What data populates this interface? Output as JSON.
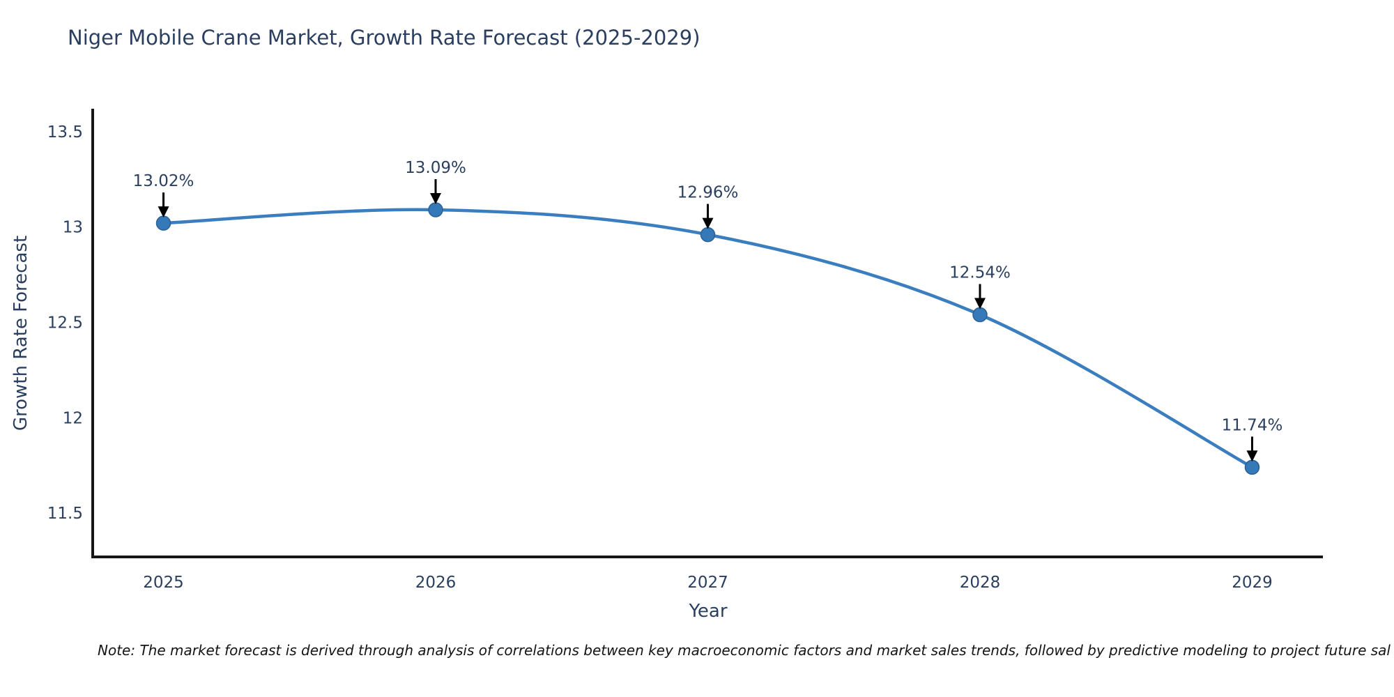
{
  "chart_data": {
    "type": "line",
    "title": "Niger Mobile Crane Market, Growth Rate Forecast (2025-2029)",
    "xlabel": "Year",
    "ylabel": "Growth Rate Forecast",
    "footnote": "Note: The market forecast is derived through analysis of correlations between key macroeconomic factors and market sales trends, followed by predictive modeling to project future sal",
    "categories": [
      "2025",
      "2026",
      "2027",
      "2028",
      "2029"
    ],
    "x": [
      2025,
      2026,
      2027,
      2028,
      2029
    ],
    "values": [
      13.02,
      13.09,
      12.96,
      12.54,
      11.74
    ],
    "point_labels": [
      "13.02%",
      "13.09%",
      "12.96%",
      "12.54%",
      "11.74%"
    ],
    "yticks": [
      {
        "value": 11.5,
        "label": "11.5"
      },
      {
        "value": 12,
        "label": "12"
      },
      {
        "value": 12.5,
        "label": "12.5"
      },
      {
        "value": 13,
        "label": "13"
      },
      {
        "value": 13.5,
        "label": "13.5"
      }
    ],
    "xlim": [
      2024.74,
      2029.26
    ],
    "ylim": [
      11.27,
      13.62
    ],
    "grid": false,
    "legend": "none",
    "line_shape": "spline",
    "colors": {
      "line": "#3b7ebf",
      "marker_fill": "#3579b8",
      "marker_edge": "#2b6094",
      "axis": "#161616",
      "tick_text": "#2a3f5f",
      "annotation_text": "#2a3f5f",
      "arrow": "#000000",
      "title_text": "#2a3f5f",
      "note_text": "#141414"
    }
  }
}
